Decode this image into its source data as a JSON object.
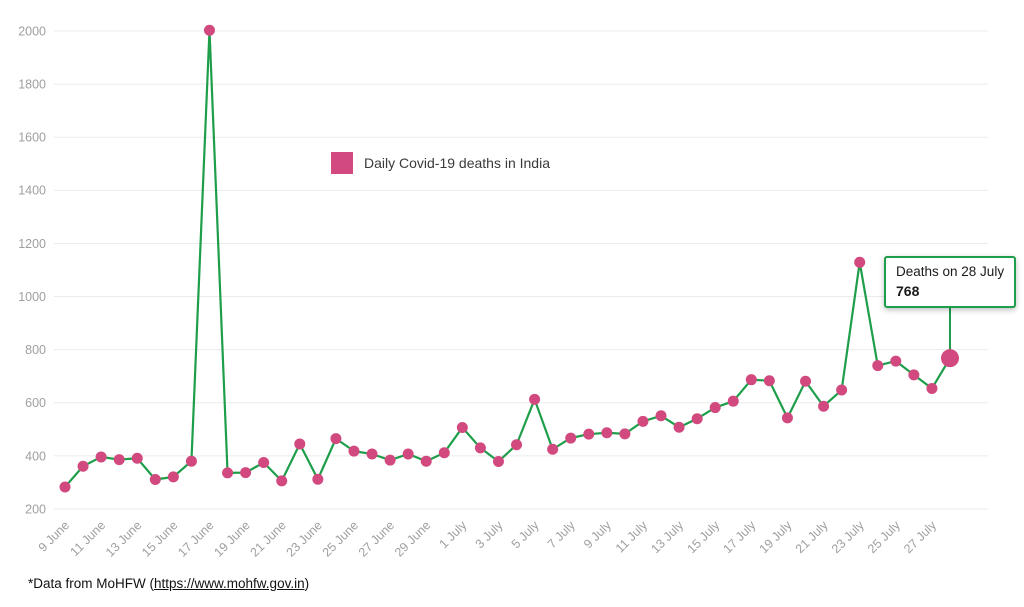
{
  "chart_data": {
    "type": "line",
    "legend": "Daily Covid-19 deaths in India",
    "x": [
      "9 June",
      "10 June",
      "11 June",
      "12 June",
      "13 June",
      "14 June",
      "15 June",
      "16 June",
      "17 June",
      "18 June",
      "19 June",
      "20 June",
      "21 June",
      "22 June",
      "23 June",
      "24 June",
      "25 June",
      "26 June",
      "27 June",
      "28 June",
      "29 June",
      "30 June",
      "1 July",
      "2 July",
      "3 July",
      "4 July",
      "5 July",
      "6 July",
      "7 July",
      "8 July",
      "9 July",
      "10 July",
      "11 July",
      "12 July",
      "13 July",
      "14 July",
      "15 July",
      "16 July",
      "17 July",
      "18 July",
      "19 July",
      "20 July",
      "21 July",
      "22 July",
      "23 July",
      "24 July",
      "25 July",
      "26 July",
      "27 July",
      "28 July"
    ],
    "values": [
      283,
      361,
      396,
      386,
      391,
      311,
      321,
      380,
      2003,
      336,
      337,
      375,
      306,
      445,
      312,
      465,
      418,
      407,
      384,
      407,
      380,
      412,
      507,
      430,
      379,
      442,
      613,
      425,
      467,
      482,
      487,
      483,
      530,
      551,
      508,
      540,
      582,
      606,
      687,
      683,
      543,
      681,
      587,
      648,
      1129,
      740,
      757,
      705,
      654,
      768
    ],
    "x_tick_labels": [
      "9 June",
      "11 June",
      "13 June",
      "15 June",
      "17 June",
      "19 June",
      "21 June",
      "23 June",
      "25 June",
      "27 June",
      "29 June",
      "1 July",
      "3 July",
      "5 July",
      "7 July",
      "9 July",
      "11 July",
      "13 July",
      "15 July",
      "17 July",
      "19 July",
      "21 July",
      "23 July",
      "25 July",
      "27 July"
    ],
    "yticks": [
      200,
      400,
      600,
      800,
      1000,
      1200,
      1400,
      1600,
      1800,
      2000
    ],
    "ylim": [
      200,
      2000
    ],
    "grid": "horizontal",
    "legend_position": "upper-center-left",
    "annotation": {
      "title": "Deaths on 28 July",
      "value": 768,
      "point_index": 49
    },
    "colors": {
      "line": "#1e9e4a",
      "marker": "#d2497f",
      "grid": "#ebebeb",
      "tick_text": "#9f9f9f"
    }
  },
  "footer": {
    "prefix": "*Data from MoHFW (",
    "link": "https://www.mohfw.gov.in",
    "suffix": ")"
  }
}
